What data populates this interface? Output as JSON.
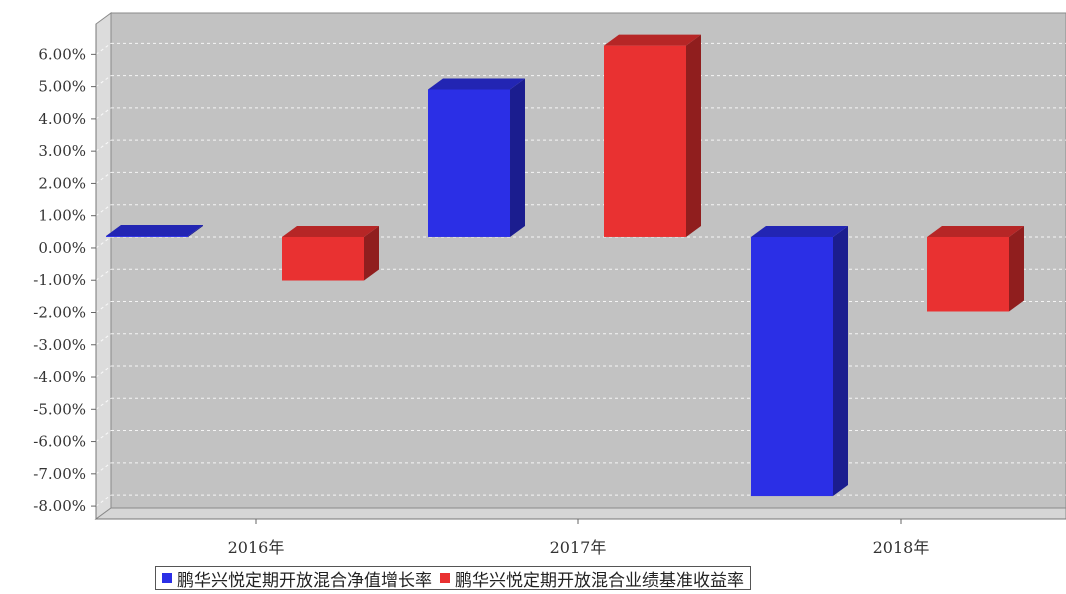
{
  "chart_data": {
    "type": "bar",
    "categories": [
      "2016年",
      "2017年",
      "2018年"
    ],
    "series": [
      {
        "name": "鹏华兴悦定期开放混合净值增长率",
        "color": "#2B2FE6",
        "values": [
          0.03,
          4.57,
          -8.03
        ]
      },
      {
        "name": "鹏华兴悦定期开放混合业绩基准收益率",
        "color": "#E93131",
        "values": [
          -1.35,
          5.93,
          -2.31
        ]
      }
    ],
    "yticks": [
      "6.00%",
      "5.00%",
      "4.00%",
      "3.00%",
      "2.00%",
      "1.00%",
      "0.00%",
      "-1.00%",
      "-2.00%",
      "-3.00%",
      "-4.00%",
      "-5.00%",
      "-6.00%",
      "-7.00%",
      "-8.00%"
    ],
    "ylim": [
      -8.4,
      6.6
    ],
    "grid": true,
    "legend_position": "bottom",
    "style": "3d"
  }
}
